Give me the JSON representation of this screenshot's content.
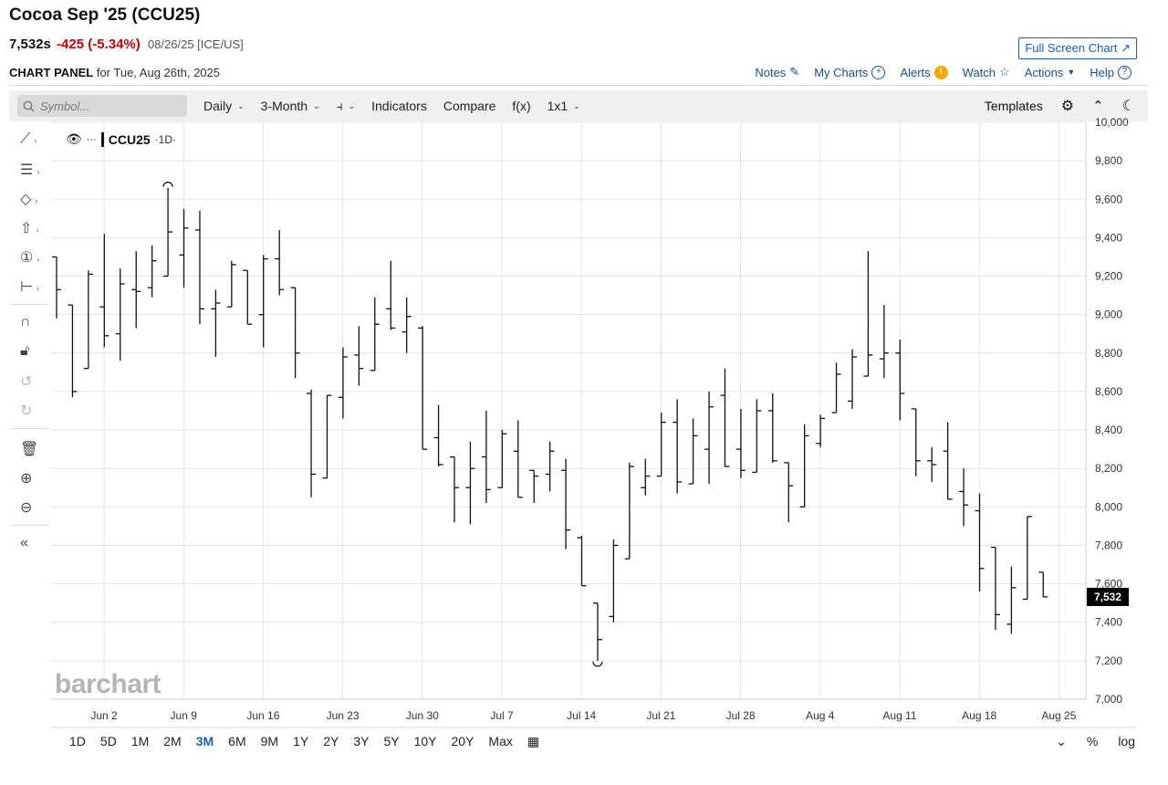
{
  "header": {
    "title": "Cocoa Sep '25 (CCU25)",
    "price": "7,532s",
    "change": "-425 (-5.34%)",
    "meta": "08/26/25 [ICE/US]",
    "full_screen": "Full Screen Chart ↗",
    "panel_label": "CHART PANEL",
    "panel_date": "for Tue, Aug 26th, 2025"
  },
  "toplinks": [
    "Notes",
    "My Charts",
    "Alerts",
    "Watch",
    "Actions",
    "Help"
  ],
  "toolbar": {
    "symbol_placeholder": "Symbol...",
    "interval": "Daily",
    "range": "3-Month",
    "indicators": "Indicators",
    "compare": "Compare",
    "fx": "f(x)",
    "layout": "1x1",
    "templates": "Templates"
  },
  "legend": {
    "symbol": "CCU25",
    "interval": "·1D·"
  },
  "watermark": "barchart",
  "ranges": [
    "1D",
    "5D",
    "1M",
    "2M",
    "3M",
    "6M",
    "9M",
    "1Y",
    "2Y",
    "3Y",
    "5Y",
    "10Y",
    "20Y",
    "Max"
  ],
  "active_range": "3M",
  "bottom_right": [
    "%",
    "log"
  ],
  "icons": [
    "search-icon",
    "settings-icon",
    "collapse-icon",
    "dark-mode-icon",
    "calendar-icon",
    "trendline-icon",
    "fib-icon",
    "shape-icon",
    "arrow-icon",
    "counter-icon",
    "measure-icon",
    "magnet-icon",
    "lock-icon",
    "undo-icon",
    "redo-icon",
    "trash-icon",
    "zoom-in-icon",
    "zoom-out-icon"
  ],
  "chart_data": {
    "type": "ohlc",
    "y_ticks": [
      "7,000",
      "7,200",
      "7,400",
      "7,600",
      "7,800",
      "8,000",
      "8,200",
      "8,400",
      "8,600",
      "8,800",
      "9,000",
      "9,200",
      "9,400",
      "9,600",
      "9,800",
      "10,000"
    ],
    "ylim": [
      7000,
      10000
    ],
    "x_ticks": [
      "Jun 2",
      "Jun 9",
      "Jun 16",
      "Jun 23",
      "Jun 30",
      "Jul 7",
      "Jul 14",
      "Jul 21",
      "Jul 28",
      "Aug 4",
      "Aug 11",
      "Aug 18",
      "Aug 25"
    ],
    "last_price_label": "7,532",
    "last_price": 7532,
    "bars": [
      {
        "o": 9300,
        "h": 9300,
        "l": 8980,
        "c": 9130
      },
      {
        "o": 9050,
        "h": 9050,
        "l": 8570,
        "c": 8600
      },
      {
        "o": 8720,
        "h": 9230,
        "l": 8720,
        "c": 9210
      },
      {
        "o": 9040,
        "h": 9420,
        "l": 8830,
        "c": 8890
      },
      {
        "o": 8900,
        "h": 9240,
        "l": 8760,
        "c": 9160
      },
      {
        "o": 9130,
        "h": 9330,
        "l": 8930,
        "c": 9120
      },
      {
        "o": 9140,
        "h": 9360,
        "l": 9090,
        "c": 9280
      },
      {
        "o": 9200,
        "h": 9660,
        "l": 9200,
        "c": 9430
      },
      {
        "o": 9310,
        "h": 9550,
        "l": 9140,
        "c": 9450
      },
      {
        "o": 9440,
        "h": 9540,
        "l": 8950,
        "c": 9030
      },
      {
        "o": 9030,
        "h": 9130,
        "l": 8780,
        "c": 9060
      },
      {
        "o": 9040,
        "h": 9280,
        "l": 9040,
        "c": 9260
      },
      {
        "o": 9230,
        "h": 9230,
        "l": 8950,
        "c": 8950
      },
      {
        "o": 9000,
        "h": 9310,
        "l": 8830,
        "c": 9290
      },
      {
        "o": 9290,
        "h": 9440,
        "l": 9100,
        "c": 9130
      },
      {
        "o": 9140,
        "h": 9140,
        "l": 8670,
        "c": 8800
      },
      {
        "o": 8590,
        "h": 8610,
        "l": 8050,
        "c": 8170
      },
      {
        "o": 8150,
        "h": 8580,
        "l": 8150,
        "c": 8580
      },
      {
        "o": 8570,
        "h": 8830,
        "l": 8460,
        "c": 8780
      },
      {
        "o": 8790,
        "h": 8940,
        "l": 8630,
        "c": 8720
      },
      {
        "o": 8710,
        "h": 9090,
        "l": 8710,
        "c": 8950
      },
      {
        "o": 9030,
        "h": 9280,
        "l": 8920,
        "c": 8930
      },
      {
        "o": 8910,
        "h": 9090,
        "l": 8800,
        "c": 8990
      },
      {
        "o": 8930,
        "h": 8940,
        "l": 8300,
        "c": 8300
      },
      {
        "o": 8360,
        "h": 8530,
        "l": 8210,
        "c": 8220
      },
      {
        "o": 8260,
        "h": 8260,
        "l": 7920,
        "c": 8100
      },
      {
        "o": 8100,
        "h": 8340,
        "l": 7910,
        "c": 8200
      },
      {
        "o": 8260,
        "h": 8500,
        "l": 8020,
        "c": 8090
      },
      {
        "o": 8100,
        "h": 8400,
        "l": 8100,
        "c": 8380
      },
      {
        "o": 8290,
        "h": 8450,
        "l": 8050,
        "c": 8050
      },
      {
        "o": 8190,
        "h": 8190,
        "l": 8020,
        "c": 8160
      },
      {
        "o": 8170,
        "h": 8340,
        "l": 8080,
        "c": 8290
      },
      {
        "o": 8190,
        "h": 8250,
        "l": 7780,
        "c": 7880
      },
      {
        "o": 7840,
        "h": 7850,
        "l": 7590,
        "c": 7590
      },
      {
        "o": 7500,
        "h": 7500,
        "l": 7200,
        "c": 7310
      },
      {
        "o": 7430,
        "h": 7830,
        "l": 7400,
        "c": 7800
      },
      {
        "o": 7730,
        "h": 8230,
        "l": 7730,
        "c": 8210
      },
      {
        "o": 8100,
        "h": 8250,
        "l": 8060,
        "c": 8160
      },
      {
        "o": 8160,
        "h": 8490,
        "l": 8160,
        "c": 8440
      },
      {
        "o": 8440,
        "h": 8560,
        "l": 8070,
        "c": 8130
      },
      {
        "o": 8120,
        "h": 8460,
        "l": 8120,
        "c": 8370
      },
      {
        "o": 8300,
        "h": 8600,
        "l": 8120,
        "c": 8520
      },
      {
        "o": 8580,
        "h": 8720,
        "l": 8210,
        "c": 8210
      },
      {
        "o": 8300,
        "h": 8510,
        "l": 8150,
        "c": 8190
      },
      {
        "o": 8180,
        "h": 8560,
        "l": 8180,
        "c": 8500
      },
      {
        "o": 8500,
        "h": 8590,
        "l": 8230,
        "c": 8240
      },
      {
        "o": 8230,
        "h": 8230,
        "l": 7920,
        "c": 8110
      },
      {
        "o": 8000,
        "h": 8430,
        "l": 8000,
        "c": 8370
      },
      {
        "o": 8330,
        "h": 8480,
        "l": 8310,
        "c": 8460
      },
      {
        "o": 8490,
        "h": 8750,
        "l": 8490,
        "c": 8690
      },
      {
        "o": 8550,
        "h": 8820,
        "l": 8510,
        "c": 8780
      },
      {
        "o": 8680,
        "h": 9330,
        "l": 8680,
        "c": 8790
      },
      {
        "o": 8770,
        "h": 9050,
        "l": 8670,
        "c": 8800
      },
      {
        "o": 8800,
        "h": 8870,
        "l": 8450,
        "c": 8590
      },
      {
        "o": 8510,
        "h": 8510,
        "l": 8160,
        "c": 8240
      },
      {
        "o": 8240,
        "h": 8310,
        "l": 8130,
        "c": 8220
      },
      {
        "o": 8290,
        "h": 8440,
        "l": 8040,
        "c": 8040
      },
      {
        "o": 8080,
        "h": 8200,
        "l": 7900,
        "c": 8010
      },
      {
        "o": 7980,
        "h": 8070,
        "l": 7560,
        "c": 7680
      },
      {
        "o": 7790,
        "h": 7790,
        "l": 7360,
        "c": 7440
      },
      {
        "o": 7390,
        "h": 7690,
        "l": 7340,
        "c": 7580
      },
      {
        "o": 7520,
        "h": 7950,
        "l": 7520,
        "c": 7950
      },
      {
        "o": 7660,
        "h": 7660,
        "l": 7532,
        "c": 7532
      }
    ]
  }
}
